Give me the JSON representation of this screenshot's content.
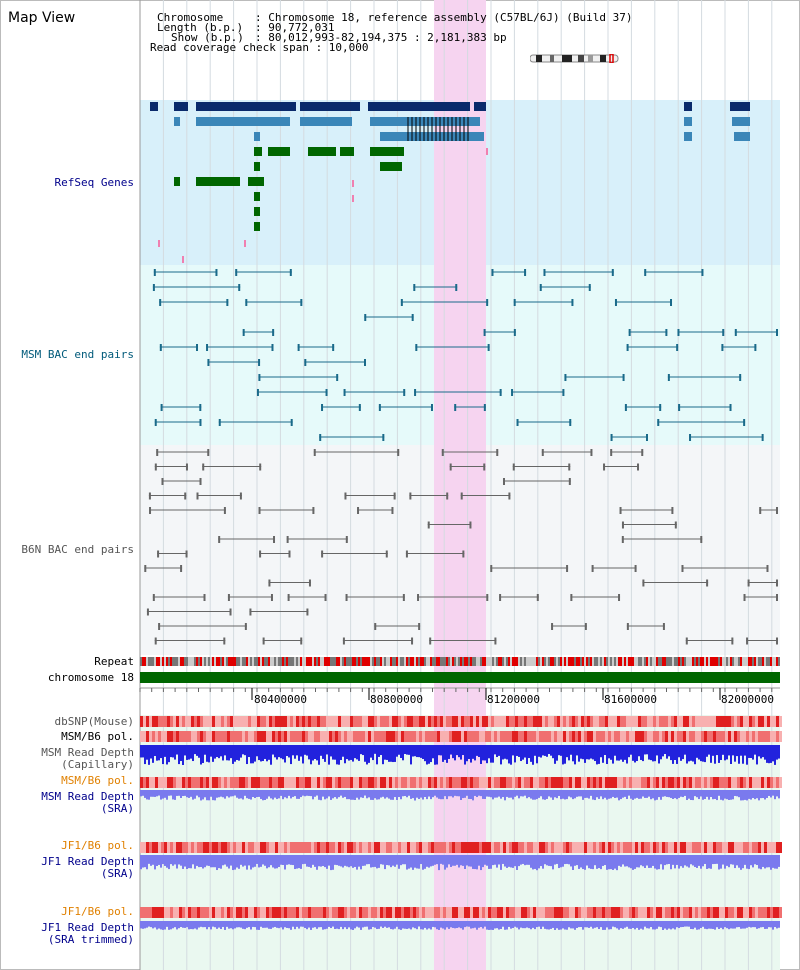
{
  "page_title": "Map View",
  "header": {
    "chromosome_key": "Chromosome",
    "chromosome_val": ": Chromosome 18, reference assembly (C57BL/6J) (Build 37)",
    "length_key": "Length (b.p.)",
    "length_val": ": 90,772,031",
    "show_key": "Show (b.p.)",
    "show_val": ": 80,012,993-82,194,375 : 2,181,383 bp",
    "coverage_text": "Read coverage check span : 10,000"
  },
  "tracks": {
    "refseq": "RefSeq Genes",
    "msm_bac": "MSM BAC end pairs",
    "b6n_bac": "B6N BAC end pairs",
    "repeat": "Repeat",
    "chromosome": "chromosome 18",
    "dbsnp": "dbSNP(Mouse)",
    "msm_b6_pol_1": "MSM/B6 pol.",
    "msm_read_depth_cap_1": "MSM Read Depth",
    "msm_read_depth_cap_2": "(Capillary)",
    "msm_b6_pol_2": "MSM/B6 pol.",
    "msm_read_depth_sra_1": "MSM Read Depth",
    "msm_read_depth_sra_2": "(SRA)",
    "jf1_b6_pol_1": "JF1/B6 pol.",
    "jf1_read_depth_1": "JF1 Read Depth",
    "jf1_read_depth_2": "(SRA)",
    "jf1_b6_pol_2": "JF1/B6 pol.",
    "jf1_read_depth_trim_1": "JF1 Read Depth",
    "jf1_read_depth_trim_2": "(SRA trimmed)"
  },
  "axis": {
    "ticks": [
      "80400000",
      "80800000",
      "81200000",
      "81600000",
      "82000000"
    ]
  },
  "colors": {
    "refseq_bg": "#d8f0fa",
    "bac_bg": "#e6fafa",
    "highlight": "#f6d4f0",
    "gene_dark": "#0a2a6b",
    "gene_mid": "#3a86b8",
    "gene_green": "#006600",
    "bac_teal": "#1a6a8a",
    "bac_gray": "#666666",
    "snp_red": "#e84040",
    "depth_blue": "#2222dd",
    "depth_lavender": "#7a7aee"
  }
}
